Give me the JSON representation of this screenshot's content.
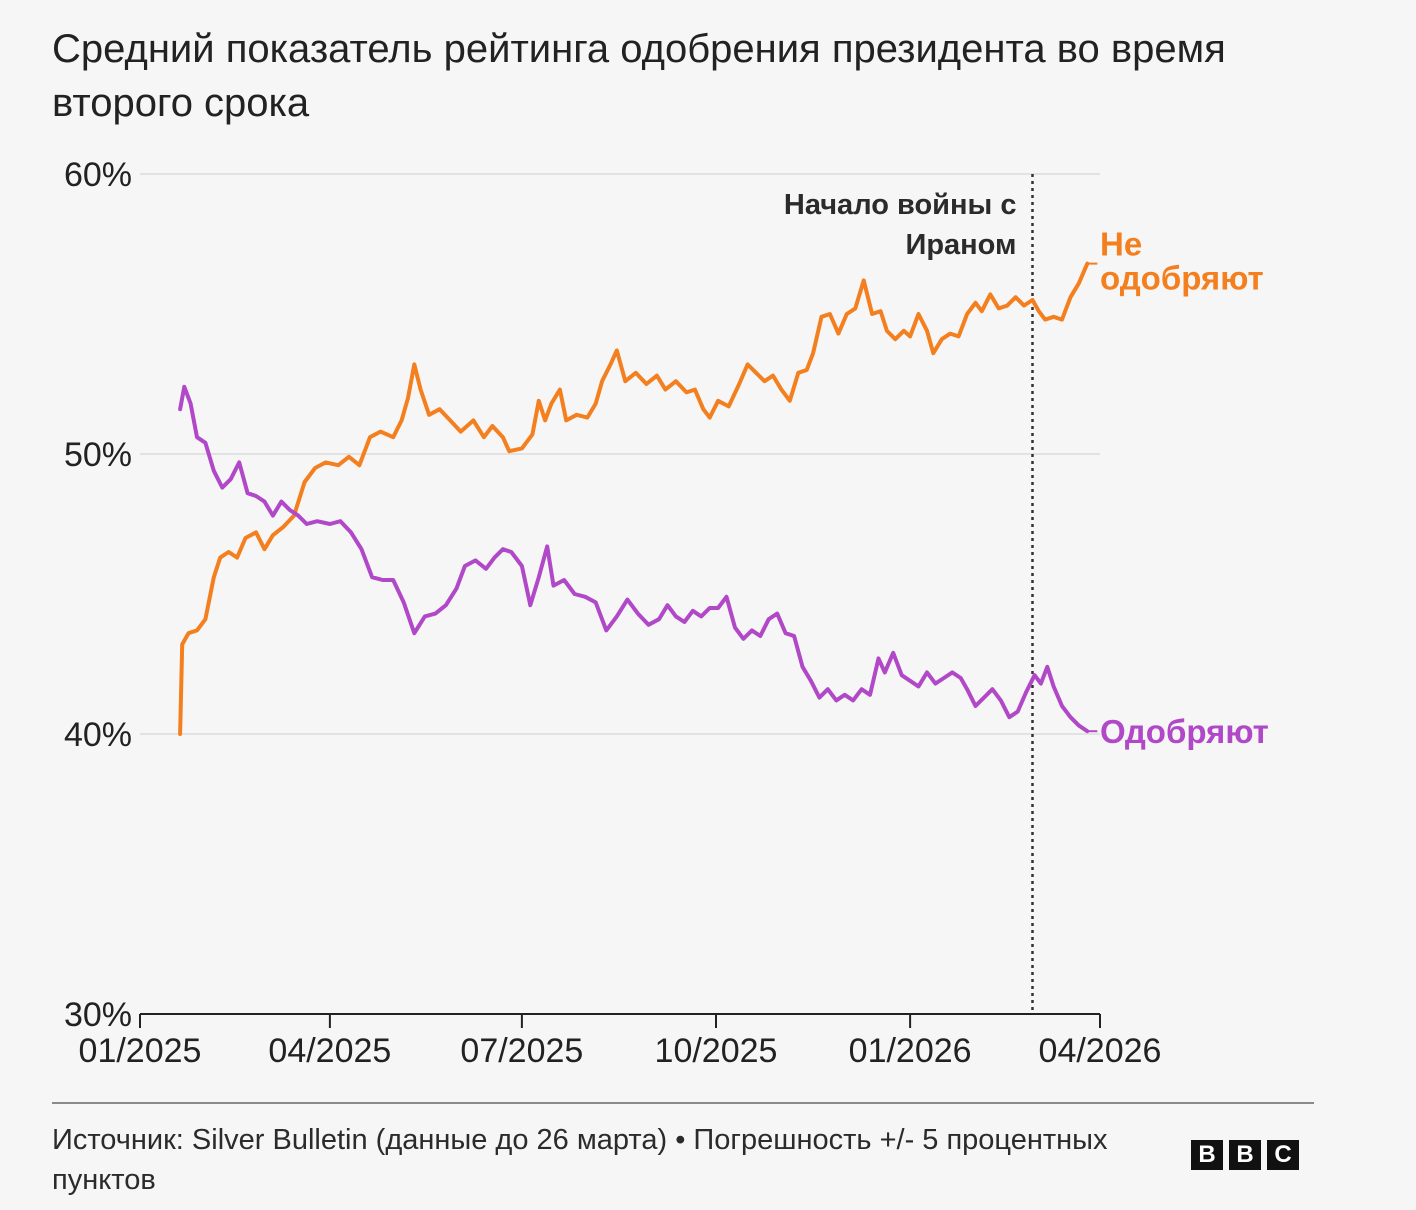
{
  "title": "Средний показатель рейтинга одобрения президента во время второго срока",
  "source": "Источник: Silver Bulletin (данные до 26 марта) • Погрешность +/- 5 процентных пунктов",
  "logo": {
    "letters": [
      "B",
      "B",
      "C"
    ]
  },
  "colors": {
    "disapprove": "#f47f1f",
    "approve": "#b048c8",
    "grid": "#e2e2e2",
    "axis": "#222222",
    "annotation_line": "#333333"
  },
  "chart_data": {
    "type": "line",
    "x_range": [
      "2025-01-01",
      "2026-04-01"
    ],
    "x_ticks": [
      "01/2025",
      "04/2025",
      "07/2025",
      "10/2025",
      "01/2026",
      "04/2026"
    ],
    "y_range": [
      30,
      60
    ],
    "y_ticks": [
      "30%",
      "40%",
      "50%",
      "60%"
    ],
    "grid": "horizontal",
    "annotation": {
      "date": "2026-02-28",
      "label_lines": [
        "Начало войны с",
        "Ираном"
      ]
    },
    "series": [
      {
        "name": "Не одобряют",
        "label_lines": [
          "Не",
          "одобряют"
        ],
        "key": "disapprove",
        "points": [
          [
            "2025-01-20",
            40.0
          ],
          [
            "2025-01-21",
            43.2
          ],
          [
            "2025-01-24",
            43.6
          ],
          [
            "2025-01-28",
            43.7
          ],
          [
            "2025-02-01",
            44.1
          ],
          [
            "2025-02-05",
            45.6
          ],
          [
            "2025-02-08",
            46.3
          ],
          [
            "2025-02-12",
            46.5
          ],
          [
            "2025-02-16",
            46.3
          ],
          [
            "2025-02-20",
            47.0
          ],
          [
            "2025-02-25",
            47.2
          ],
          [
            "2025-03-01",
            46.6
          ],
          [
            "2025-03-05",
            47.1
          ],
          [
            "2025-03-10",
            47.4
          ],
          [
            "2025-03-15",
            47.8
          ],
          [
            "2025-03-20",
            49.0
          ],
          [
            "2025-03-25",
            49.5
          ],
          [
            "2025-03-30",
            49.7
          ],
          [
            "2025-04-05",
            49.6
          ],
          [
            "2025-04-10",
            49.9
          ],
          [
            "2025-04-15",
            49.6
          ],
          [
            "2025-04-20",
            50.6
          ],
          [
            "2025-04-25",
            50.8
          ],
          [
            "2025-05-01",
            50.6
          ],
          [
            "2025-05-05",
            51.2
          ],
          [
            "2025-05-08",
            52.0
          ],
          [
            "2025-05-11",
            53.2
          ],
          [
            "2025-05-14",
            52.3
          ],
          [
            "2025-05-18",
            51.4
          ],
          [
            "2025-05-23",
            51.6
          ],
          [
            "2025-05-28",
            51.2
          ],
          [
            "2025-06-02",
            50.8
          ],
          [
            "2025-06-08",
            51.2
          ],
          [
            "2025-06-13",
            50.6
          ],
          [
            "2025-06-17",
            51.0
          ],
          [
            "2025-06-22",
            50.6
          ],
          [
            "2025-06-25",
            50.1
          ],
          [
            "2025-07-01",
            50.2
          ],
          [
            "2025-07-06",
            50.7
          ],
          [
            "2025-07-09",
            51.9
          ],
          [
            "2025-07-12",
            51.2
          ],
          [
            "2025-07-15",
            51.8
          ],
          [
            "2025-07-19",
            52.3
          ],
          [
            "2025-07-22",
            51.2
          ],
          [
            "2025-07-27",
            51.4
          ],
          [
            "2025-08-01",
            51.3
          ],
          [
            "2025-08-05",
            51.8
          ],
          [
            "2025-08-08",
            52.6
          ],
          [
            "2025-08-12",
            53.2
          ],
          [
            "2025-08-15",
            53.7
          ],
          [
            "2025-08-19",
            52.6
          ],
          [
            "2025-08-24",
            52.9
          ],
          [
            "2025-08-29",
            52.5
          ],
          [
            "2025-09-03",
            52.8
          ],
          [
            "2025-09-07",
            52.3
          ],
          [
            "2025-09-12",
            52.6
          ],
          [
            "2025-09-17",
            52.2
          ],
          [
            "2025-09-21",
            52.3
          ],
          [
            "2025-09-25",
            51.6
          ],
          [
            "2025-09-28",
            51.3
          ],
          [
            "2025-10-02",
            51.9
          ],
          [
            "2025-10-07",
            51.7
          ],
          [
            "2025-10-12",
            52.5
          ],
          [
            "2025-10-16",
            53.2
          ],
          [
            "2025-10-20",
            52.9
          ],
          [
            "2025-10-24",
            52.6
          ],
          [
            "2025-10-28",
            52.8
          ],
          [
            "2025-11-01",
            52.3
          ],
          [
            "2025-11-05",
            51.9
          ],
          [
            "2025-11-09",
            52.9
          ],
          [
            "2025-11-13",
            53.0
          ],
          [
            "2025-11-16",
            53.6
          ],
          [
            "2025-11-20",
            54.9
          ],
          [
            "2025-11-24",
            55.0
          ],
          [
            "2025-11-28",
            54.3
          ],
          [
            "2025-12-02",
            55.0
          ],
          [
            "2025-12-06",
            55.2
          ],
          [
            "2025-12-10",
            56.2
          ],
          [
            "2025-12-14",
            55.0
          ],
          [
            "2025-12-18",
            55.1
          ],
          [
            "2025-12-21",
            54.4
          ],
          [
            "2025-12-25",
            54.1
          ],
          [
            "2025-12-29",
            54.4
          ],
          [
            "2026-01-01",
            54.2
          ],
          [
            "2026-01-05",
            55.0
          ],
          [
            "2026-01-09",
            54.4
          ],
          [
            "2026-01-12",
            53.6
          ],
          [
            "2026-01-16",
            54.1
          ],
          [
            "2026-01-20",
            54.3
          ],
          [
            "2026-01-24",
            54.2
          ],
          [
            "2026-01-28",
            55.0
          ],
          [
            "2026-02-01",
            55.4
          ],
          [
            "2026-02-04",
            55.1
          ],
          [
            "2026-02-08",
            55.7
          ],
          [
            "2026-02-12",
            55.2
          ],
          [
            "2026-02-16",
            55.3
          ],
          [
            "2026-02-20",
            55.6
          ],
          [
            "2026-02-24",
            55.3
          ],
          [
            "2026-02-28",
            55.5
          ],
          [
            "2026-03-03",
            55.1
          ],
          [
            "2026-03-06",
            54.8
          ],
          [
            "2026-03-10",
            54.9
          ],
          [
            "2026-03-14",
            54.8
          ],
          [
            "2026-03-18",
            55.6
          ],
          [
            "2026-03-22",
            56.1
          ],
          [
            "2026-03-26",
            56.8
          ]
        ]
      },
      {
        "name": "Одобряют",
        "label_lines": [
          "Одобряют"
        ],
        "key": "approve",
        "points": [
          [
            "2025-01-20",
            51.6
          ],
          [
            "2025-01-22",
            52.4
          ],
          [
            "2025-01-25",
            51.8
          ],
          [
            "2025-01-28",
            50.6
          ],
          [
            "2025-02-01",
            50.4
          ],
          [
            "2025-02-05",
            49.4
          ],
          [
            "2025-02-09",
            48.8
          ],
          [
            "2025-02-13",
            49.1
          ],
          [
            "2025-02-17",
            49.7
          ],
          [
            "2025-02-21",
            48.6
          ],
          [
            "2025-02-25",
            48.5
          ],
          [
            "2025-03-01",
            48.3
          ],
          [
            "2025-03-05",
            47.8
          ],
          [
            "2025-03-09",
            48.3
          ],
          [
            "2025-03-13",
            48.0
          ],
          [
            "2025-03-17",
            47.8
          ],
          [
            "2025-03-21",
            47.5
          ],
          [
            "2025-03-26",
            47.6
          ],
          [
            "2025-04-01",
            47.5
          ],
          [
            "2025-04-06",
            47.6
          ],
          [
            "2025-04-11",
            47.2
          ],
          [
            "2025-04-16",
            46.6
          ],
          [
            "2025-04-21",
            45.6
          ],
          [
            "2025-04-26",
            45.5
          ],
          [
            "2025-05-01",
            45.5
          ],
          [
            "2025-05-06",
            44.7
          ],
          [
            "2025-05-11",
            43.6
          ],
          [
            "2025-05-16",
            44.2
          ],
          [
            "2025-05-21",
            44.3
          ],
          [
            "2025-05-26",
            44.6
          ],
          [
            "2025-05-31",
            45.2
          ],
          [
            "2025-06-04",
            46.0
          ],
          [
            "2025-06-09",
            46.2
          ],
          [
            "2025-06-14",
            45.9
          ],
          [
            "2025-06-18",
            46.3
          ],
          [
            "2025-06-22",
            46.6
          ],
          [
            "2025-06-26",
            46.5
          ],
          [
            "2025-07-01",
            46.0
          ],
          [
            "2025-07-05",
            44.6
          ],
          [
            "2025-07-09",
            45.6
          ],
          [
            "2025-07-13",
            46.7
          ],
          [
            "2025-07-16",
            45.3
          ],
          [
            "2025-07-21",
            45.5
          ],
          [
            "2025-07-26",
            45.0
          ],
          [
            "2025-07-31",
            44.9
          ],
          [
            "2025-08-05",
            44.7
          ],
          [
            "2025-08-10",
            43.7
          ],
          [
            "2025-08-15",
            44.2
          ],
          [
            "2025-08-20",
            44.8
          ],
          [
            "2025-08-25",
            44.3
          ],
          [
            "2025-08-30",
            43.9
          ],
          [
            "2025-09-04",
            44.1
          ],
          [
            "2025-09-08",
            44.6
          ],
          [
            "2025-09-12",
            44.2
          ],
          [
            "2025-09-16",
            44.0
          ],
          [
            "2025-09-20",
            44.4
          ],
          [
            "2025-09-24",
            44.2
          ],
          [
            "2025-09-28",
            44.5
          ],
          [
            "2025-10-02",
            44.5
          ],
          [
            "2025-10-06",
            44.9
          ],
          [
            "2025-10-10",
            43.8
          ],
          [
            "2025-10-14",
            43.4
          ],
          [
            "2025-10-18",
            43.7
          ],
          [
            "2025-10-22",
            43.5
          ],
          [
            "2025-10-26",
            44.1
          ],
          [
            "2025-10-30",
            44.3
          ],
          [
            "2025-11-03",
            43.6
          ],
          [
            "2025-11-07",
            43.5
          ],
          [
            "2025-11-11",
            42.4
          ],
          [
            "2025-11-15",
            41.9
          ],
          [
            "2025-11-19",
            41.3
          ],
          [
            "2025-11-23",
            41.6
          ],
          [
            "2025-11-27",
            41.2
          ],
          [
            "2025-12-01",
            41.4
          ],
          [
            "2025-12-05",
            41.2
          ],
          [
            "2025-12-09",
            41.6
          ],
          [
            "2025-12-13",
            41.4
          ],
          [
            "2025-12-17",
            42.7
          ],
          [
            "2025-12-20",
            42.2
          ],
          [
            "2025-12-24",
            42.9
          ],
          [
            "2025-12-28",
            42.1
          ],
          [
            "2026-01-01",
            41.9
          ],
          [
            "2026-01-05",
            41.7
          ],
          [
            "2026-01-09",
            42.2
          ],
          [
            "2026-01-13",
            41.8
          ],
          [
            "2026-01-17",
            42.0
          ],
          [
            "2026-01-21",
            42.2
          ],
          [
            "2026-01-25",
            42.0
          ],
          [
            "2026-01-28",
            41.6
          ],
          [
            "2026-02-01",
            41.0
          ],
          [
            "2026-02-05",
            41.3
          ],
          [
            "2026-02-09",
            41.6
          ],
          [
            "2026-02-13",
            41.2
          ],
          [
            "2026-02-17",
            40.6
          ],
          [
            "2026-02-21",
            40.8
          ],
          [
            "2026-02-25",
            41.5
          ],
          [
            "2026-03-01",
            42.1
          ],
          [
            "2026-03-04",
            41.8
          ],
          [
            "2026-03-07",
            42.4
          ],
          [
            "2026-03-10",
            41.7
          ],
          [
            "2026-03-14",
            41.0
          ],
          [
            "2026-03-18",
            40.6
          ],
          [
            "2026-03-22",
            40.3
          ],
          [
            "2026-03-26",
            40.1
          ]
        ]
      }
    ]
  }
}
